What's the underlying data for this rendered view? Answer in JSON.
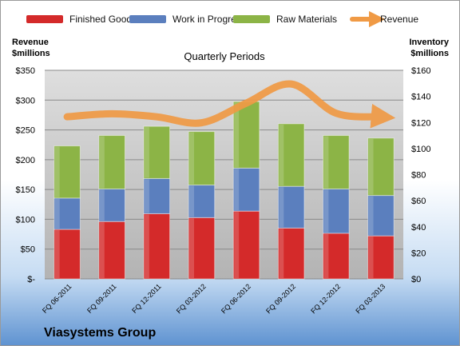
{
  "chart_data": {
    "type": "bar",
    "stacked": true,
    "subtitle": "Quarterly Periods",
    "company": "Viasystems Group",
    "y_left_title": [
      "Revenue",
      "$millions"
    ],
    "y_right_title": [
      "Inventory",
      "$millions"
    ],
    "y_left_range": [
      0,
      350
    ],
    "y_left_ticks": [
      "$-",
      "$50",
      "$100",
      "$150",
      "$200",
      "$250",
      "$300",
      "$350"
    ],
    "y_right_range": [
      0,
      160
    ],
    "y_right_ticks": [
      "$0",
      "$20",
      "$40",
      "$60",
      "$80",
      "$100",
      "$120",
      "$140",
      "$160"
    ],
    "grid": true,
    "legend_position": "top",
    "categories": [
      "FQ 06-2011",
      "FQ 09-2011",
      "FQ 12-2011",
      "FQ 03-2012",
      "FQ 06-2012",
      "FQ 09-2012",
      "FQ 12-2012",
      "FQ 03-2013"
    ],
    "series": [
      {
        "name": "Finished Goods",
        "axis": "right",
        "color": "#d42a2a",
        "values": [
          38,
          44,
          50,
          47,
          52,
          39,
          35,
          33
        ]
      },
      {
        "name": "Work in Progress",
        "axis": "right",
        "color": "#5b7fbe",
        "values": [
          24,
          25,
          27,
          25,
          33,
          32,
          34,
          31
        ]
      },
      {
        "name": "Raw Materials",
        "axis": "right",
        "color": "#8cb446",
        "values": [
          40,
          41,
          40,
          41,
          51,
          48,
          41,
          44
        ]
      },
      {
        "name": "Revenue",
        "axis": "left",
        "type": "line",
        "color": "#f09a45",
        "values": [
          272,
          277,
          272,
          262,
          295,
          327,
          278,
          272
        ]
      }
    ]
  }
}
